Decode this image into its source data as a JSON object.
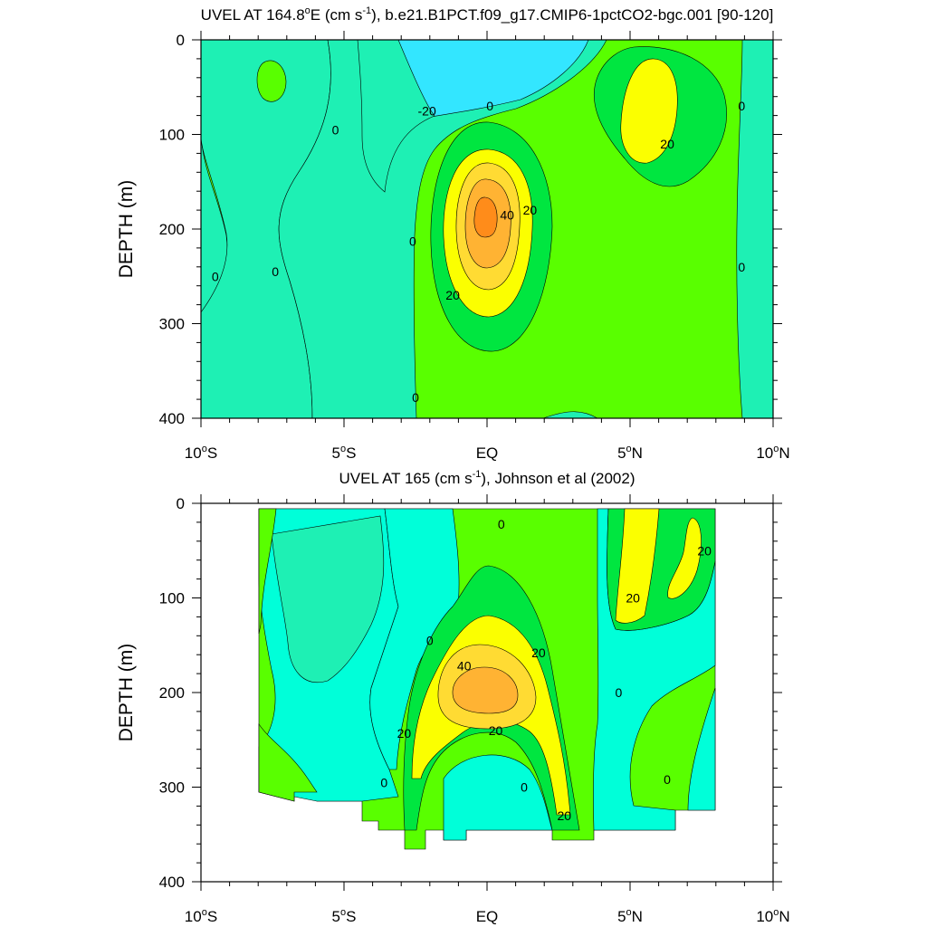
{
  "colors": {
    "c_neg20": "#33e6ff",
    "c_neg10": "#00ffd9",
    "c_0": "#1ef0b4",
    "c_10": "#59ff00",
    "c_20": "#00e640",
    "c_30": "#fbff00",
    "c_40": "#ffdb33",
    "c_50": "#ffb333",
    "c_60": "#ff8c1a"
  },
  "chart_data": [
    {
      "type": "contour",
      "title_main": "UVEL AT 164.8",
      "title_deg": "o",
      "title_unit_open": "E (cm s",
      "title_exp": "-1",
      "title_rest": "), b.e21.B1PCT.f09_g17.CMIP6-1pctCO2-bgc.001 [90-120]",
      "ylabel": "DEPTH (m)",
      "xlim_deg": [
        -10,
        10
      ],
      "ylim_m": [
        400,
        0
      ],
      "yticks": [
        "0",
        "100",
        "200",
        "300",
        "400"
      ],
      "xticks": [
        {
          "num": "10",
          "deg": "o",
          "hem": "S",
          "value": -10
        },
        {
          "num": "5",
          "deg": "o",
          "hem": "S",
          "value": -5
        },
        {
          "num": "",
          "deg": "",
          "hem": "EQ",
          "value": 0
        },
        {
          "num": "5",
          "deg": "o",
          "hem": "N",
          "value": 5
        },
        {
          "num": "10",
          "deg": "o",
          "hem": "N",
          "value": 10
        }
      ],
      "contour_interval": 10,
      "contour_labels": [
        {
          "text": "0",
          "lon": -9.5,
          "depth": 250
        },
        {
          "text": "0",
          "lon": -7.4,
          "depth": 245
        },
        {
          "text": "0",
          "lon": -5.3,
          "depth": 95
        },
        {
          "text": "-20",
          "lon": -2.1,
          "depth": 75
        },
        {
          "text": "0",
          "lon": 0.1,
          "depth": 70
        },
        {
          "text": "0",
          "lon": -2.6,
          "depth": 213
        },
        {
          "text": "0",
          "lon": -2.5,
          "depth": 378
        },
        {
          "text": "40",
          "lon": 0.7,
          "depth": 185
        },
        {
          "text": "20",
          "lon": 1.5,
          "depth": 180
        },
        {
          "text": "20",
          "lon": -1.2,
          "depth": 270
        },
        {
          "text": "20",
          "lon": 6.3,
          "depth": 110
        },
        {
          "text": "0",
          "lon": 8.9,
          "depth": 70
        },
        {
          "text": "0",
          "lon": 8.9,
          "depth": 240
        }
      ]
    },
    {
      "type": "contour",
      "title_main": "UVEL AT 165 (cm s",
      "title_exp": "-1",
      "title_rest": "), Johnson et al (2002)",
      "ylabel": "DEPTH (m)",
      "xlim_deg": [
        -10,
        10
      ],
      "ylim_m": [
        400,
        0
      ],
      "yticks": [
        "0",
        "100",
        "200",
        "300",
        "400"
      ],
      "xticks": [
        {
          "num": "10",
          "deg": "o",
          "hem": "S",
          "value": -10
        },
        {
          "num": "5",
          "deg": "o",
          "hem": "S",
          "value": -5
        },
        {
          "num": "",
          "deg": "",
          "hem": "EQ",
          "value": 0
        },
        {
          "num": "5",
          "deg": "o",
          "hem": "N",
          "value": 5
        },
        {
          "num": "10",
          "deg": "o",
          "hem": "N",
          "value": 10
        }
      ],
      "contour_interval": 10,
      "data_extent": {
        "lon": [
          -8,
          8
        ]
      },
      "contour_labels": [
        {
          "text": "0",
          "lon": 0.5,
          "depth": 22
        },
        {
          "text": "20",
          "lon": 7.6,
          "depth": 50
        },
        {
          "text": "20",
          "lon": 5.1,
          "depth": 100
        },
        {
          "text": "0",
          "lon": -2.0,
          "depth": 145
        },
        {
          "text": "40",
          "lon": -0.8,
          "depth": 172
        },
        {
          "text": "20",
          "lon": 1.8,
          "depth": 158
        },
        {
          "text": "0",
          "lon": 4.6,
          "depth": 200
        },
        {
          "text": "20",
          "lon": -2.9,
          "depth": 243
        },
        {
          "text": "20",
          "lon": 0.3,
          "depth": 240
        },
        {
          "text": "0",
          "lon": -3.6,
          "depth": 295
        },
        {
          "text": "0",
          "lon": 1.3,
          "depth": 300
        },
        {
          "text": "20",
          "lon": 2.7,
          "depth": 330
        },
        {
          "text": "0",
          "lon": 6.3,
          "depth": 292
        }
      ]
    }
  ]
}
